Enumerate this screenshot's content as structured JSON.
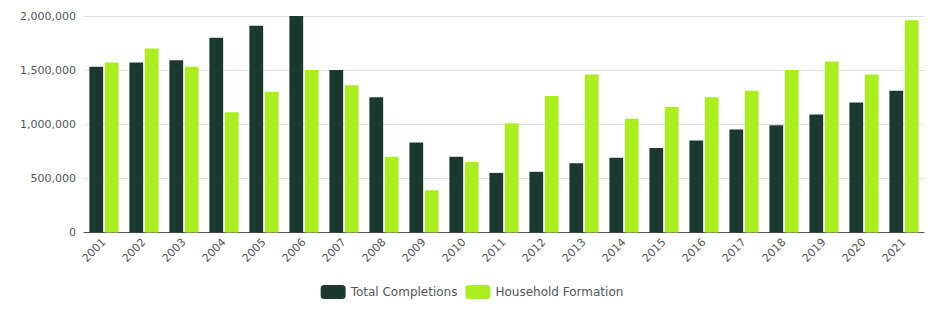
{
  "chart_data": {
    "type": "bar",
    "categories": [
      "2001",
      "2002",
      "2003",
      "2004",
      "2005",
      "2006",
      "2007",
      "2008",
      "2009",
      "2010",
      "2011",
      "2012",
      "2013",
      "2014",
      "2015",
      "2016",
      "2017",
      "2018",
      "2019",
      "2020",
      "2021"
    ],
    "series": [
      {
        "name": "Total Completions",
        "color": "#1b3a2d",
        "values": [
          1530000,
          1570000,
          1590000,
          1800000,
          1910000,
          2000000,
          1500000,
          1250000,
          830000,
          700000,
          550000,
          560000,
          640000,
          690000,
          780000,
          850000,
          950000,
          990000,
          1090000,
          1200000,
          1310000
        ]
      },
      {
        "name": "Household Formation",
        "color": "#aaee22",
        "values": [
          1570000,
          1700000,
          1530000,
          1110000,
          1300000,
          1500000,
          1360000,
          700000,
          390000,
          650000,
          1010000,
          1260000,
          1460000,
          1050000,
          1160000,
          1250000,
          1310000,
          1500000,
          1580000,
          1460000,
          1960000
        ]
      }
    ],
    "ylim": [
      0,
      2000000
    ],
    "yticks": [
      0,
      {
        "value": 500000,
        "label": "500,000"
      },
      {
        "value": 1000000,
        "label": "1,000,000"
      },
      {
        "value": 1500000,
        "label": "1,500,000"
      },
      {
        "value": 2000000,
        "label": "2,000,000"
      }
    ],
    "grid": true,
    "legend": "bottom"
  }
}
